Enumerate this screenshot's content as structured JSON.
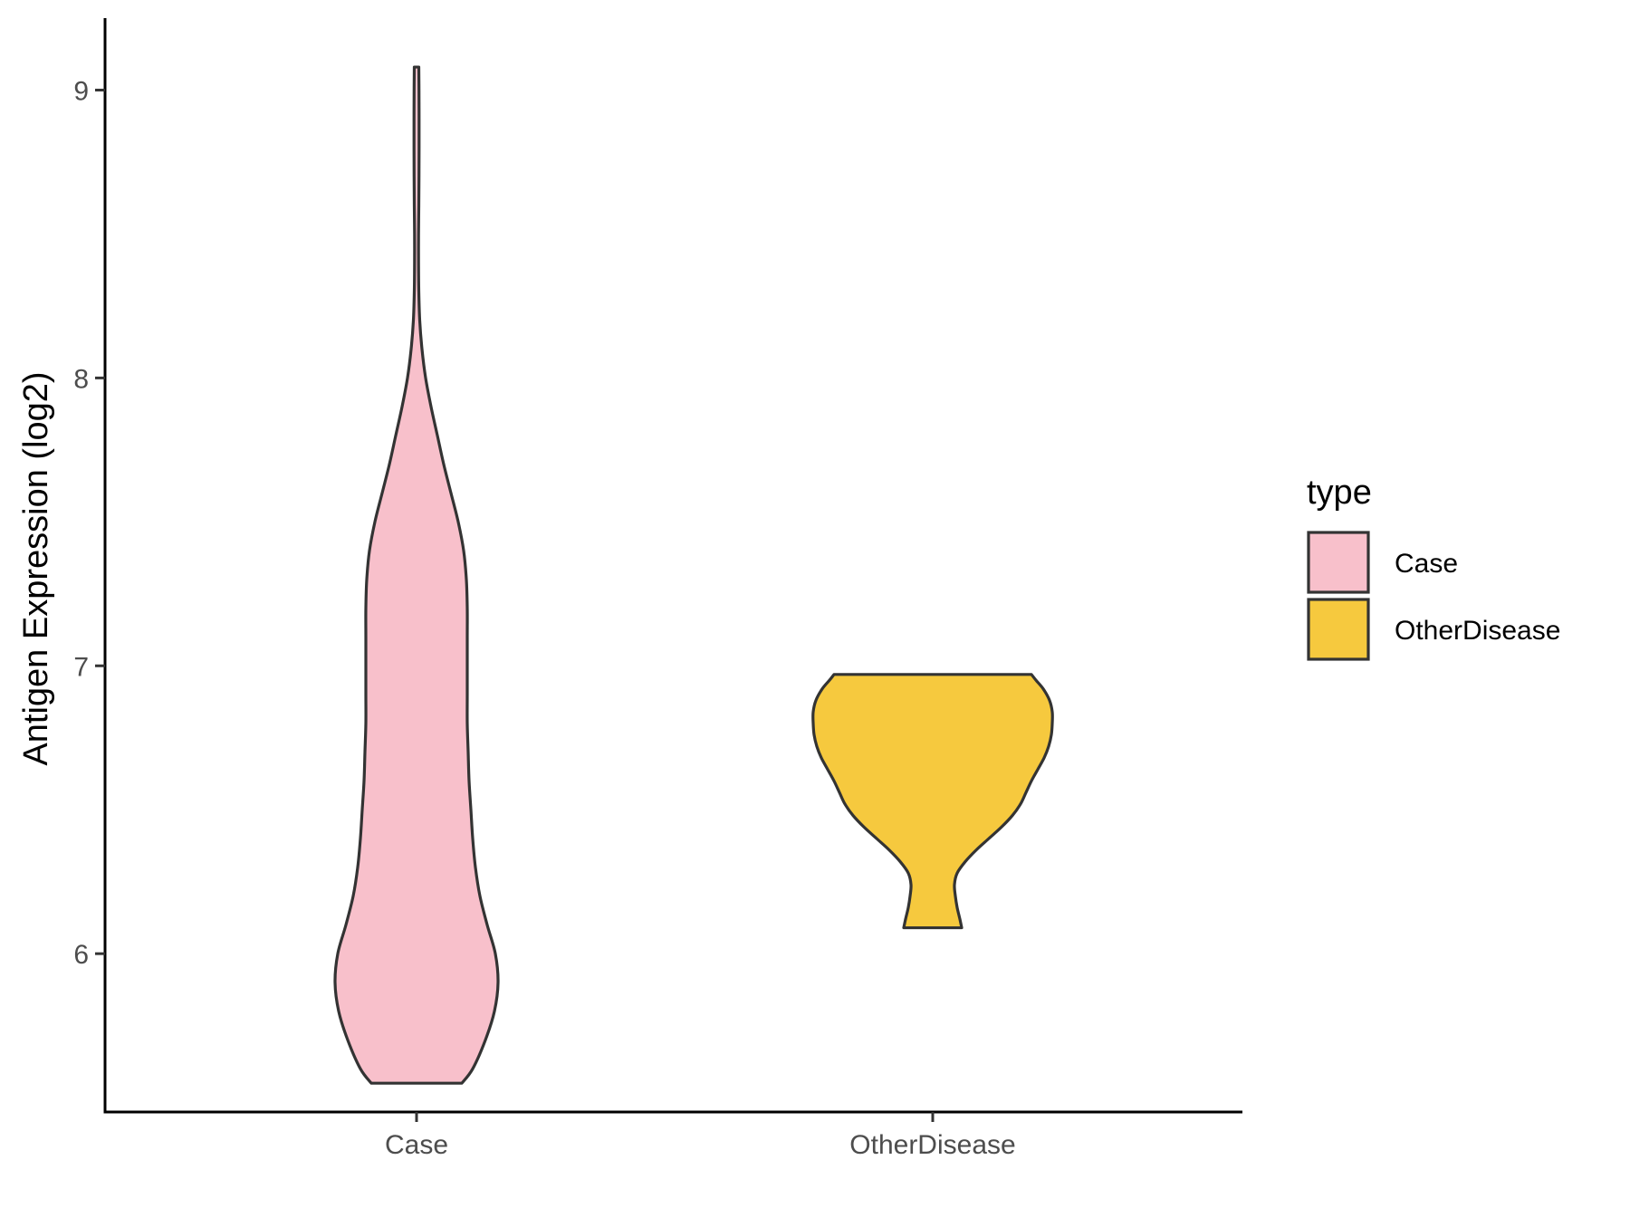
{
  "chart_data": {
    "type": "violin",
    "title": "",
    "xlabel": "",
    "ylabel": "Antigen Expression (log2)",
    "categories": [
      "Case",
      "OtherDisease"
    ],
    "ylim": [
      5.45,
      9.25
    ],
    "yticks": [
      6,
      7,
      8,
      9
    ],
    "grid": false,
    "legend": {
      "title": "type",
      "position": "right",
      "entries": [
        {
          "label": "Case",
          "color": "#F8C0CB"
        },
        {
          "label": "OtherDisease",
          "color": "#F6C93E"
        }
      ]
    },
    "series": [
      {
        "category": "Case",
        "color": "#F8C0CB",
        "ymin": 5.55,
        "ymax": 9.08,
        "profile": [
          [
            5.55,
            0.5
          ],
          [
            5.6,
            0.62
          ],
          [
            5.7,
            0.76
          ],
          [
            5.8,
            0.86
          ],
          [
            5.9,
            0.9
          ],
          [
            6.0,
            0.87
          ],
          [
            6.1,
            0.78
          ],
          [
            6.2,
            0.7
          ],
          [
            6.3,
            0.65
          ],
          [
            6.4,
            0.62
          ],
          [
            6.5,
            0.6
          ],
          [
            6.6,
            0.58
          ],
          [
            6.7,
            0.57
          ],
          [
            6.8,
            0.56
          ],
          [
            6.9,
            0.56
          ],
          [
            7.0,
            0.56
          ],
          [
            7.1,
            0.56
          ],
          [
            7.2,
            0.56
          ],
          [
            7.3,
            0.55
          ],
          [
            7.4,
            0.52
          ],
          [
            7.5,
            0.46
          ],
          [
            7.6,
            0.38
          ],
          [
            7.7,
            0.3
          ],
          [
            7.8,
            0.23
          ],
          [
            7.9,
            0.16
          ],
          [
            8.0,
            0.1
          ],
          [
            8.1,
            0.06
          ],
          [
            8.2,
            0.035
          ],
          [
            8.3,
            0.025
          ],
          [
            8.4,
            0.022
          ],
          [
            8.5,
            0.022
          ],
          [
            8.6,
            0.025
          ],
          [
            8.7,
            0.027
          ],
          [
            8.8,
            0.028
          ],
          [
            8.9,
            0.028
          ],
          [
            9.0,
            0.027
          ],
          [
            9.08,
            0.025
          ]
        ]
      },
      {
        "category": "OtherDisease",
        "color": "#F6C93E",
        "ymin": 6.09,
        "ymax": 6.97,
        "profile": [
          [
            6.09,
            0.32
          ],
          [
            6.12,
            0.3
          ],
          [
            6.16,
            0.27
          ],
          [
            6.2,
            0.25
          ],
          [
            6.24,
            0.24
          ],
          [
            6.28,
            0.27
          ],
          [
            6.32,
            0.36
          ],
          [
            6.36,
            0.48
          ],
          [
            6.4,
            0.62
          ],
          [
            6.44,
            0.76
          ],
          [
            6.48,
            0.88
          ],
          [
            6.52,
            0.97
          ],
          [
            6.56,
            1.03
          ],
          [
            6.6,
            1.09
          ],
          [
            6.64,
            1.16
          ],
          [
            6.68,
            1.23
          ],
          [
            6.72,
            1.28
          ],
          [
            6.76,
            1.31
          ],
          [
            6.8,
            1.32
          ],
          [
            6.84,
            1.32
          ],
          [
            6.88,
            1.29
          ],
          [
            6.92,
            1.22
          ],
          [
            6.95,
            1.14
          ],
          [
            6.97,
            1.09
          ]
        ]
      }
    ]
  }
}
